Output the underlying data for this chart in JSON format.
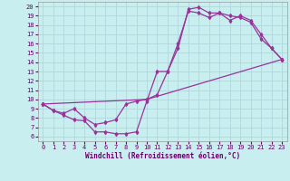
{
  "xlabel": "Windchill (Refroidissement éolien,°C)",
  "bg_color": "#c8eef0",
  "grid_color": "#b0d8dc",
  "line_color": "#993399",
  "markersize": 2.0,
  "linewidth": 0.9,
  "xlim": [
    -0.5,
    23.5
  ],
  "ylim": [
    5.5,
    20.5
  ],
  "xticks": [
    0,
    1,
    2,
    3,
    4,
    5,
    6,
    7,
    8,
    9,
    10,
    11,
    12,
    13,
    14,
    15,
    16,
    17,
    18,
    19,
    20,
    21,
    22,
    23
  ],
  "yticks": [
    6,
    7,
    8,
    9,
    10,
    11,
    12,
    13,
    14,
    15,
    16,
    17,
    18,
    19,
    20
  ],
  "curve1_x": [
    0,
    1,
    2,
    3,
    4,
    5,
    6,
    7,
    8,
    9,
    10,
    11,
    12,
    13,
    14,
    15,
    16,
    17,
    18,
    19,
    20,
    21,
    22,
    23
  ],
  "curve1_y": [
    9.5,
    8.8,
    8.3,
    7.8,
    7.7,
    6.5,
    6.5,
    6.3,
    6.3,
    6.5,
    9.8,
    13.0,
    13.0,
    15.5,
    19.7,
    19.9,
    19.3,
    19.3,
    18.5,
    19.0,
    18.5,
    17.0,
    15.5,
    14.3
  ],
  "curve2_x": [
    0,
    1,
    2,
    3,
    4,
    5,
    6,
    7,
    8,
    9,
    10,
    11,
    12,
    13,
    14,
    15,
    16,
    17,
    18,
    19,
    20,
    21,
    22,
    23
  ],
  "curve2_y": [
    9.5,
    8.8,
    8.5,
    9.0,
    8.0,
    7.3,
    7.5,
    7.8,
    9.5,
    9.8,
    10.0,
    10.5,
    13.0,
    16.0,
    19.5,
    19.3,
    18.8,
    19.3,
    19.0,
    18.8,
    18.3,
    16.5,
    15.5,
    14.3
  ],
  "curve3_x": [
    0,
    10,
    23
  ],
  "curve3_y": [
    9.5,
    10.0,
    14.3
  ],
  "tick_fontsize": 5.0,
  "xlabel_fontsize": 5.5
}
